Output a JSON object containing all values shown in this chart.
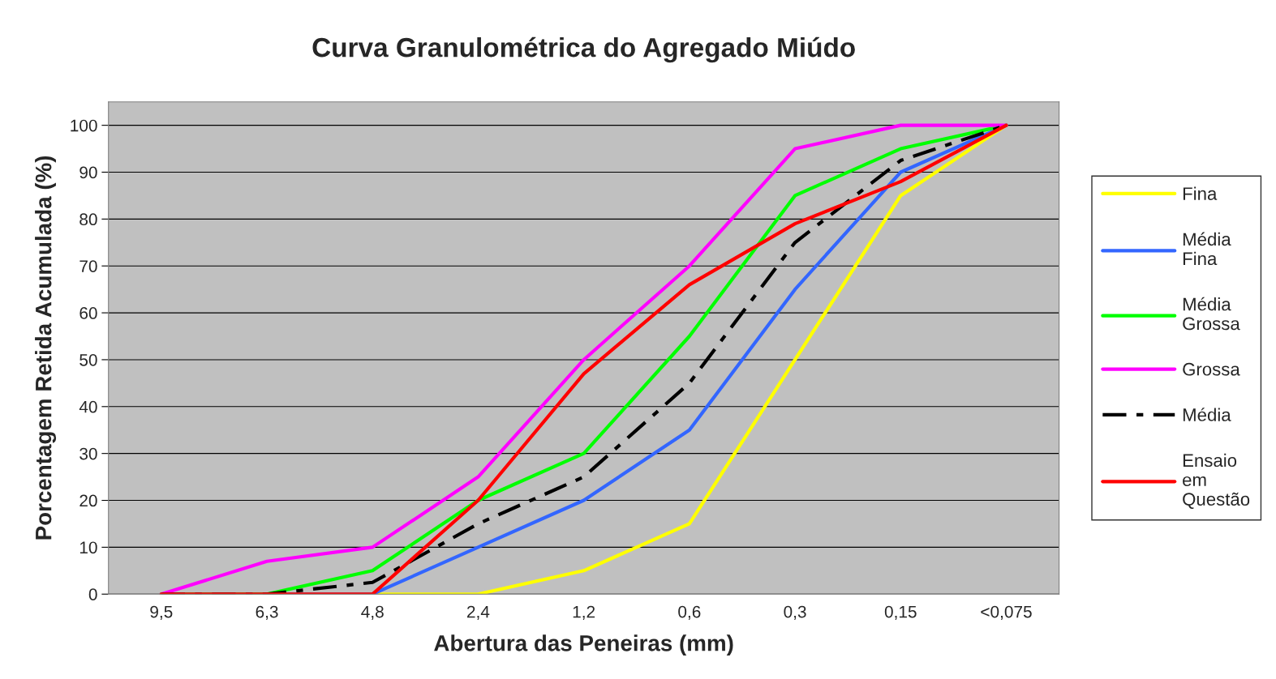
{
  "chart_data": {
    "type": "line",
    "title": "Curva Granulométrica do Agregado Miúdo",
    "xlabel": "Abertura das Peneiras (mm)",
    "ylabel": "Porcentagem Retida Acumulada (%)",
    "categories": [
      "9,5",
      "6,3",
      "4,8",
      "2,4",
      "1,2",
      "0,6",
      "0,3",
      "0,15",
      "<0,075"
    ],
    "series": [
      {
        "name": "Fina",
        "color": "#ffff00",
        "values": [
          0,
          0,
          0,
          0,
          5,
          15,
          50,
          85,
          100
        ]
      },
      {
        "name": "Média Fina",
        "color": "#3366ff",
        "values": [
          0,
          0,
          0,
          10,
          20,
          35,
          65,
          90,
          100
        ]
      },
      {
        "name": "Média Grossa",
        "color": "#00ff00",
        "values": [
          0,
          0,
          5,
          20,
          30,
          55,
          85,
          95,
          100
        ]
      },
      {
        "name": "Grossa",
        "color": "#ff00ff",
        "values": [
          0,
          7,
          10,
          25,
          50,
          70,
          95,
          100,
          100
        ]
      },
      {
        "name": "Média",
        "color": "#000000",
        "line_style": "dashed",
        "values": [
          0,
          0,
          2.5,
          15,
          25,
          45,
          75,
          92.5,
          100
        ]
      },
      {
        "name": "Ensaio em Questão",
        "color": "#ff0000",
        "values": [
          0,
          0,
          0,
          20,
          47,
          66,
          79,
          88,
          100
        ]
      }
    ],
    "ylim": [
      0,
      105
    ],
    "yticks": [
      0,
      10,
      20,
      30,
      40,
      50,
      60,
      70,
      80,
      90,
      100
    ],
    "grid": "y",
    "legend": "right",
    "marker": "none"
  }
}
